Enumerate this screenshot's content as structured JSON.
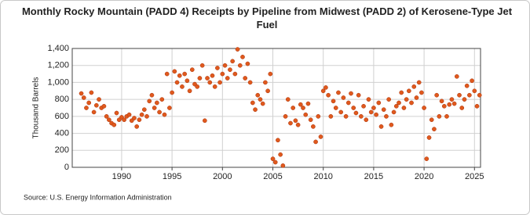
{
  "chart_data": {
    "type": "scatter",
    "title": "Monthly Rocky Mountain (PADD 4) Receipts by Pipeline from Midwest (PADD 2) of Kerosene-Type Jet Fuel",
    "y_label": "Thousand Barrels",
    "source": "Source: U.S. Energy Information Administration",
    "color": "#e0591d",
    "grid": true,
    "xlim": [
      1985.1,
      2025.6
    ],
    "xticks": [
      1990,
      1995,
      2000,
      2005,
      2010,
      2015,
      2020,
      2025
    ],
    "ylim": [
      0,
      1400
    ],
    "yticks": [
      0,
      200,
      400,
      600,
      800,
      {
        "value": 1000,
        "label": "1,000"
      },
      {
        "value": 1200,
        "label": "1,200"
      },
      {
        "value": 1400,
        "label": "1,400"
      }
    ],
    "x": [
      1986.0,
      1986.25,
      1986.5,
      1986.75,
      1987.0,
      1987.25,
      1987.5,
      1987.75,
      1988.0,
      1988.25,
      1988.5,
      1988.75,
      1989.0,
      1989.25,
      1989.5,
      1989.75,
      1990.0,
      1990.25,
      1990.5,
      1990.75,
      1991.0,
      1991.25,
      1991.5,
      1991.75,
      1992.0,
      1992.25,
      1992.5,
      1992.75,
      1993.0,
      1993.25,
      1993.5,
      1993.75,
      1994.0,
      1994.25,
      1994.5,
      1994.75,
      1995.0,
      1995.25,
      1995.5,
      1995.75,
      1996.0,
      1996.25,
      1996.5,
      1996.75,
      1997.0,
      1997.25,
      1997.5,
      1997.75,
      1998.0,
      1998.25,
      1998.5,
      1998.75,
      1999.0,
      1999.25,
      1999.5,
      1999.75,
      2000.0,
      2000.25,
      2000.5,
      2000.75,
      2001.0,
      2001.25,
      2001.5,
      2001.75,
      2002.0,
      2002.25,
      2002.5,
      2002.75,
      2003.0,
      2003.25,
      2003.5,
      2003.75,
      2004.0,
      2004.25,
      2004.5,
      2004.75,
      2005.0,
      2005.25,
      2005.5,
      2005.75,
      2006.0,
      2006.25,
      2006.5,
      2006.75,
      2007.0,
      2007.25,
      2007.5,
      2007.75,
      2008.0,
      2008.25,
      2008.5,
      2008.75,
      2009.0,
      2009.25,
      2009.5,
      2009.75,
      2010.0,
      2010.25,
      2010.5,
      2010.75,
      2011.0,
      2011.25,
      2011.5,
      2011.75,
      2012.0,
      2012.25,
      2012.5,
      2012.75,
      2013.0,
      2013.25,
      2013.5,
      2013.75,
      2014.0,
      2014.25,
      2014.5,
      2014.75,
      2015.0,
      2015.25,
      2015.5,
      2015.75,
      2016.0,
      2016.25,
      2016.5,
      2016.75,
      2017.0,
      2017.25,
      2017.5,
      2017.75,
      2018.0,
      2018.25,
      2018.5,
      2018.75,
      2019.0,
      2019.25,
      2019.5,
      2019.75,
      2020.0,
      2020.25,
      2020.5,
      2020.75,
      2021.0,
      2021.25,
      2021.5,
      2021.75,
      2022.0,
      2022.25,
      2022.5,
      2022.75,
      2023.0,
      2023.25,
      2023.5,
      2023.75,
      2024.0,
      2024.25,
      2024.5,
      2024.75,
      2025.0,
      2025.25,
      2025.5
    ],
    "values": [
      870,
      820,
      700,
      760,
      880,
      650,
      730,
      800,
      700,
      720,
      600,
      560,
      520,
      500,
      640,
      560,
      590,
      560,
      600,
      620,
      550,
      580,
      480,
      560,
      620,
      680,
      600,
      780,
      850,
      700,
      760,
      650,
      800,
      620,
      1100,
      700,
      880,
      1130,
      1000,
      1080,
      950,
      1100,
      1020,
      900,
      1150,
      980,
      950,
      1050,
      1200,
      550,
      1050,
      1000,
      1080,
      950,
      1170,
      1000,
      1100,
      1200,
      1050,
      1150,
      1250,
      1100,
      1390,
      1200,
      1300,
      1050,
      1220,
      1000,
      760,
      680,
      850,
      800,
      750,
      1000,
      900,
      1100,
      100,
      60,
      320,
      150,
      20,
      600,
      800,
      520,
      700,
      550,
      500,
      740,
      700,
      620,
      750,
      560,
      480,
      300,
      600,
      360,
      900,
      940,
      850,
      600,
      780,
      700,
      880,
      650,
      820,
      600,
      760,
      870,
      700,
      640,
      850,
      600,
      720,
      560,
      800,
      650,
      700,
      620,
      760,
      480,
      680,
      600,
      800,
      500,
      650,
      720,
      760,
      880,
      700,
      800,
      900,
      760,
      950,
      820,
      1000,
      880,
      700,
      100,
      350,
      560,
      450,
      850,
      600,
      780,
      720,
      600,
      740,
      800,
      750,
      1070,
      850,
      700,
      800,
      960,
      850,
      1020,
      900,
      720,
      850
    ]
  }
}
